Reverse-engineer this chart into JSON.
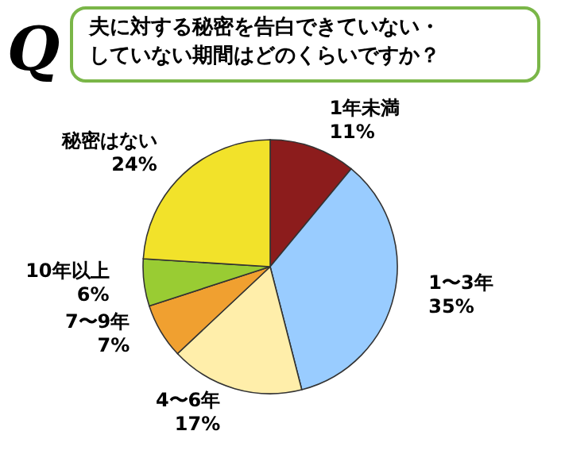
{
  "chart_data": {
    "type": "pie",
    "title": "夫に対する秘密を告白できていない・していない期間はどのくらいですか？",
    "annotations": [
      "Q"
    ],
    "categories": [
      "1年未満",
      "1〜3年",
      "4〜6年",
      "7〜9年",
      "10年以上",
      "秘密はない"
    ],
    "values": [
      11,
      35,
      17,
      7,
      6,
      24
    ],
    "colors": [
      "#8c1c1c",
      "#99ccff",
      "#ffeeaa",
      "#f0a030",
      "#99cc33",
      "#f2e22a"
    ],
    "value_labels": [
      "11%",
      "35%",
      "17%",
      "7%",
      "6%",
      "24%"
    ]
  }
}
